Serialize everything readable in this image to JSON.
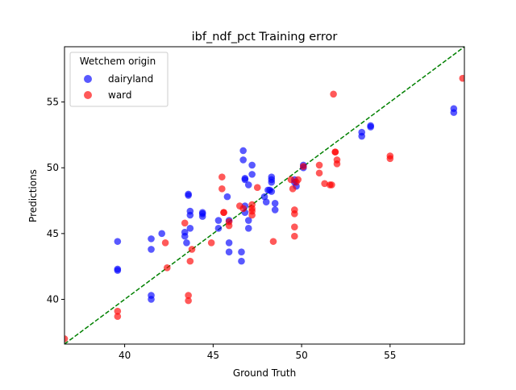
{
  "chart_data": {
    "type": "scatter",
    "title": "ibf_ndf_pct Training error",
    "xlabel": "Ground Truth",
    "ylabel": "Predictions",
    "xlim": [
      36.6,
      59.2
    ],
    "ylim": [
      36.6,
      59.2
    ],
    "xticks": [
      40,
      45,
      50,
      55
    ],
    "yticks": [
      40,
      45,
      50,
      55
    ],
    "grid": false,
    "legend": {
      "title": "Wetchem origin",
      "placement": "top-left"
    },
    "reference_line": {
      "style": "dashed",
      "color": "#008000",
      "from": [
        36.6,
        36.6
      ],
      "to": [
        59.2,
        59.2
      ]
    },
    "series": [
      {
        "name": "dairyland",
        "color": "#0000ff",
        "points": [
          [
            39.6,
            44.4
          ],
          [
            39.6,
            42.3
          ],
          [
            39.6,
            42.2
          ],
          [
            41.5,
            44.6
          ],
          [
            41.5,
            43.8
          ],
          [
            41.5,
            40.3
          ],
          [
            41.5,
            40.0
          ],
          [
            42.1,
            45.0
          ],
          [
            43.4,
            45.1
          ],
          [
            43.4,
            44.8
          ],
          [
            43.5,
            44.3
          ],
          [
            43.6,
            48.0
          ],
          [
            43.6,
            47.9
          ],
          [
            43.7,
            46.7
          ],
          [
            43.7,
            46.4
          ],
          [
            43.7,
            45.4
          ],
          [
            44.4,
            46.6
          ],
          [
            44.4,
            46.5
          ],
          [
            44.4,
            46.3
          ],
          [
            45.3,
            46.0
          ],
          [
            45.3,
            45.4
          ],
          [
            45.8,
            47.8
          ],
          [
            45.9,
            46.0
          ],
          [
            45.9,
            44.3
          ],
          [
            45.9,
            43.6
          ],
          [
            46.6,
            43.6
          ],
          [
            46.6,
            42.9
          ],
          [
            46.7,
            51.3
          ],
          [
            46.7,
            50.6
          ],
          [
            46.8,
            49.2
          ],
          [
            46.8,
            49.1
          ],
          [
            46.8,
            47.1
          ],
          [
            46.8,
            46.6
          ],
          [
            47.0,
            48.7
          ],
          [
            47.0,
            46.0
          ],
          [
            47.0,
            45.4
          ],
          [
            47.2,
            50.2
          ],
          [
            47.2,
            49.5
          ],
          [
            47.9,
            47.8
          ],
          [
            48.0,
            47.4
          ],
          [
            48.1,
            48.3
          ],
          [
            48.2,
            48.3
          ],
          [
            48.3,
            49.3
          ],
          [
            48.3,
            49.1
          ],
          [
            48.3,
            48.9
          ],
          [
            48.3,
            48.2
          ],
          [
            48.5,
            47.3
          ],
          [
            48.5,
            46.8
          ],
          [
            49.6,
            49.1
          ],
          [
            49.6,
            48.9
          ],
          [
            49.7,
            48.6
          ],
          [
            50.1,
            50.2
          ],
          [
            50.1,
            50.0
          ],
          [
            53.4,
            52.7
          ],
          [
            53.4,
            52.4
          ],
          [
            53.9,
            53.2
          ],
          [
            53.9,
            53.1
          ],
          [
            58.6,
            54.5
          ],
          [
            58.6,
            54.2
          ]
        ]
      },
      {
        "name": "ward",
        "color": "#ff0000",
        "points": [
          [
            36.6,
            37.0
          ],
          [
            39.6,
            39.1
          ],
          [
            39.6,
            38.7
          ],
          [
            42.3,
            44.3
          ],
          [
            42.4,
            42.4
          ],
          [
            43.4,
            45.8
          ],
          [
            43.6,
            40.3
          ],
          [
            43.6,
            39.9
          ],
          [
            43.7,
            42.9
          ],
          [
            43.8,
            43.8
          ],
          [
            44.9,
            44.3
          ],
          [
            45.5,
            49.3
          ],
          [
            45.5,
            48.4
          ],
          [
            45.6,
            46.6
          ],
          [
            45.6,
            46.6
          ],
          [
            45.9,
            45.9
          ],
          [
            45.9,
            45.6
          ],
          [
            46.5,
            47.1
          ],
          [
            46.7,
            46.9
          ],
          [
            47.2,
            47.2
          ],
          [
            47.2,
            46.9
          ],
          [
            47.2,
            46.7
          ],
          [
            47.2,
            46.4
          ],
          [
            47.5,
            48.5
          ],
          [
            48.4,
            44.4
          ],
          [
            49.4,
            49.1
          ],
          [
            49.5,
            48.4
          ],
          [
            49.6,
            46.8
          ],
          [
            49.6,
            46.5
          ],
          [
            49.6,
            45.5
          ],
          [
            49.6,
            44.8
          ],
          [
            49.7,
            48.9
          ],
          [
            49.8,
            49.1
          ],
          [
            50.1,
            50.1
          ],
          [
            51.0,
            50.2
          ],
          [
            51.0,
            49.6
          ],
          [
            51.3,
            48.8
          ],
          [
            51.6,
            48.7
          ],
          [
            51.7,
            48.7
          ],
          [
            51.8,
            55.6
          ],
          [
            51.9,
            51.2
          ],
          [
            51.9,
            51.2
          ],
          [
            52.0,
            50.6
          ],
          [
            52.0,
            50.3
          ],
          [
            55.0,
            50.9
          ],
          [
            55.0,
            50.7
          ],
          [
            59.1,
            56.8
          ]
        ]
      }
    ]
  }
}
